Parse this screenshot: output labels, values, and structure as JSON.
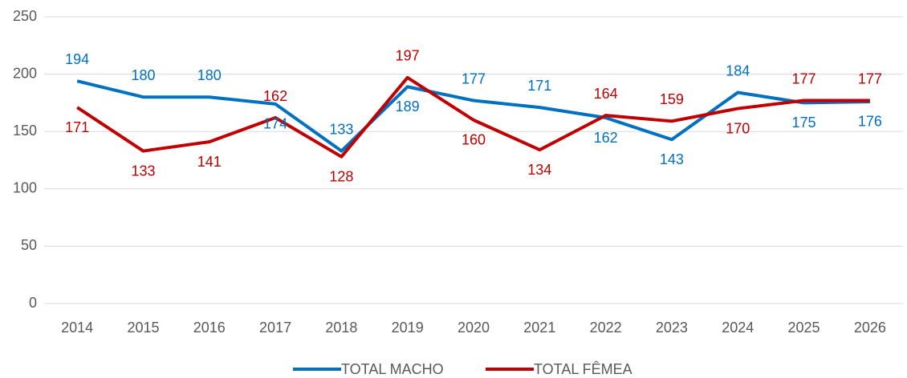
{
  "chart_data": {
    "type": "line",
    "categories": [
      "2014",
      "2015",
      "2016",
      "2017",
      "2018",
      "2019",
      "2020",
      "2021",
      "2022",
      "2023",
      "2024",
      "2025",
      "2026"
    ],
    "series": [
      {
        "name": "TOTAL MACHO",
        "color": "#0070c0",
        "values": [
          194,
          180,
          180,
          174,
          133,
          189,
          177,
          171,
          162,
          143,
          184,
          175,
          176
        ]
      },
      {
        "name": "TOTAL FÊMEA",
        "color": "#c00000",
        "values": [
          171,
          133,
          141,
          162,
          128,
          197,
          160,
          134,
          164,
          159,
          170,
          177,
          177
        ]
      }
    ],
    "ylim": [
      0,
      250
    ],
    "yticks": [
      0,
      50,
      100,
      150,
      200,
      250
    ],
    "grid": true,
    "legend": "bottom"
  }
}
